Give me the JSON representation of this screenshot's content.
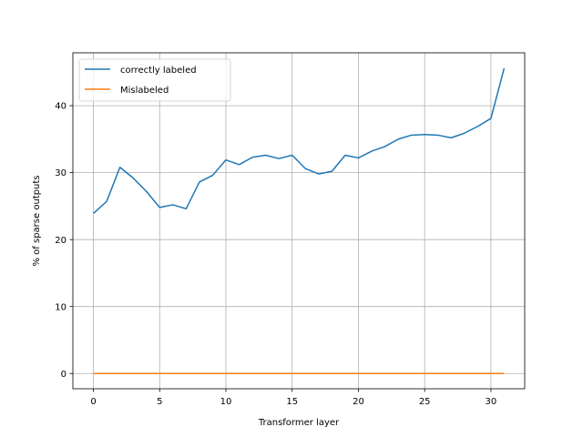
{
  "chart_data": {
    "type": "line",
    "title": "",
    "xlabel": "Transformer layer",
    "ylabel": "% of sparse outputs",
    "xlim": [
      -1.55,
      32.55
    ],
    "ylim": [
      -2.28,
      47.9
    ],
    "xticks": [
      0,
      5,
      10,
      15,
      20,
      25,
      30
    ],
    "yticks": [
      0,
      10,
      20,
      30,
      40
    ],
    "grid": true,
    "legend_position": "upper left",
    "x": [
      0,
      1,
      2,
      3,
      4,
      5,
      6,
      7,
      8,
      9,
      10,
      11,
      12,
      13,
      14,
      15,
      16,
      17,
      18,
      19,
      20,
      21,
      22,
      23,
      24,
      25,
      26,
      27,
      28,
      29,
      30,
      31
    ],
    "series": [
      {
        "name": "correctly labeled",
        "color": "#1f77b4",
        "values": [
          23.9,
          25.7,
          30.8,
          29.2,
          27.2,
          24.8,
          25.2,
          24.6,
          28.6,
          29.6,
          31.9,
          31.2,
          32.3,
          32.6,
          32.1,
          32.6,
          30.6,
          29.8,
          30.2,
          32.6,
          32.2,
          33.2,
          33.9,
          35.0,
          35.6,
          35.7,
          35.6,
          35.2,
          35.9,
          36.9,
          38.1,
          45.6
        ]
      },
      {
        "name": "Mislabeled",
        "color": "#ff7f0e",
        "values": [
          0,
          0,
          0,
          0,
          0,
          0,
          0,
          0,
          0,
          0,
          0,
          0,
          0,
          0,
          0,
          0,
          0,
          0,
          0,
          0,
          0,
          0,
          0,
          0,
          0,
          0,
          0,
          0,
          0,
          0,
          0,
          0
        ]
      }
    ]
  }
}
